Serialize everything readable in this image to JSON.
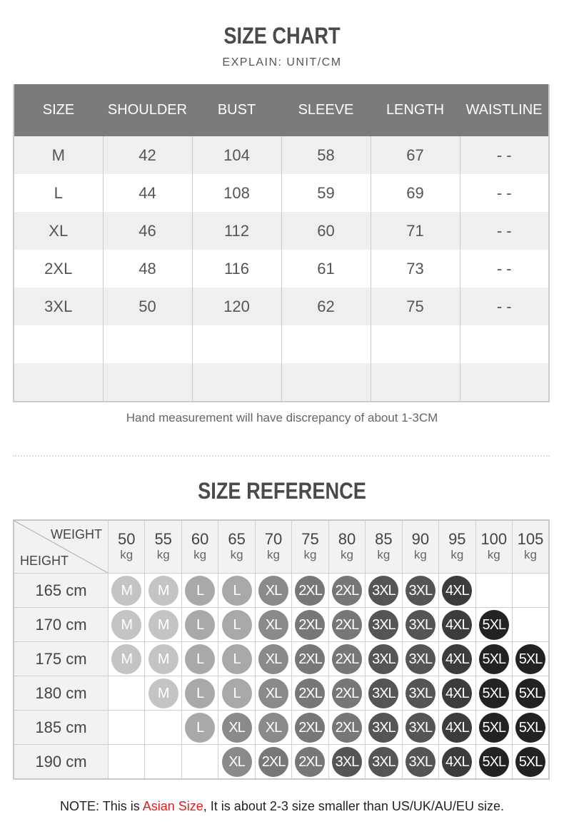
{
  "chart": {
    "title": "SIZE CHART",
    "explain": "EXPLAIN: UNIT/CM",
    "headers": [
      "SIZE",
      "SHOULDER",
      "BUST",
      "SLEEVE",
      "LENGTH",
      "WAISTLINE"
    ],
    "rows": [
      [
        "M",
        "42",
        "104",
        "58",
        "67",
        "- -"
      ],
      [
        "L",
        "44",
        "108",
        "59",
        "69",
        "- -"
      ],
      [
        "XL",
        "46",
        "112",
        "60",
        "71",
        "- -"
      ],
      [
        "2XL",
        "48",
        "116",
        "61",
        "73",
        "- -"
      ],
      [
        "3XL",
        "50",
        "120",
        "62",
        "75",
        "- -"
      ],
      [
        "",
        "",
        "",
        "",
        "",
        ""
      ],
      [
        "",
        "",
        "",
        "",
        "",
        ""
      ]
    ],
    "note": "Hand measurement will have discrepancy of about 1-3CM"
  },
  "reference": {
    "title": "SIZE REFERENCE",
    "weight_label": "WEIGHT",
    "height_label": "HEIGHT",
    "weights": [
      "50",
      "55",
      "60",
      "65",
      "70",
      "75",
      "80",
      "85",
      "90",
      "95",
      "100",
      "105"
    ],
    "weight_unit": "kg",
    "heights": [
      "165 cm",
      "170 cm",
      "175 cm",
      "180 cm",
      "185 cm",
      "190 cm"
    ],
    "grid": [
      [
        "M",
        "M",
        "L",
        "L",
        "XL",
        "2XL",
        "2XL",
        "3XL",
        "3XL",
        "4XL",
        "",
        ""
      ],
      [
        "M",
        "M",
        "L",
        "L",
        "XL",
        "2XL",
        "2XL",
        "3XL",
        "3XL",
        "4XL",
        "5XL",
        ""
      ],
      [
        "M",
        "M",
        "L",
        "L",
        "XL",
        "2XL",
        "2XL",
        "3XL",
        "3XL",
        "4XL",
        "5XL",
        "5XL"
      ],
      [
        "",
        "M",
        "L",
        "L",
        "XL",
        "2XL",
        "2XL",
        "3XL",
        "3XL",
        "4XL",
        "5XL",
        "5XL"
      ],
      [
        "",
        "",
        "L",
        "XL",
        "XL",
        "2XL",
        "2XL",
        "3XL",
        "3XL",
        "4XL",
        "5XL",
        "5XL"
      ],
      [
        "",
        "",
        "",
        "XL",
        "2XL",
        "2XL",
        "3XL",
        "3XL",
        "3XL",
        "4XL",
        "5XL",
        "5XL"
      ]
    ],
    "size_colors": {
      "M": "#c4c4c4",
      "L": "#a9a9a9",
      "XL": "#8a8a8a",
      "2XL": "#777777",
      "3XL": "#555555",
      "4XL": "#3c3c3c",
      "5XL": "#222222"
    }
  },
  "footer": {
    "prefix": "NOTE: This is ",
    "highlight": "Asian Size",
    "suffix": ", It is about 2-3 size smaller than US/UK/AU/EU size.",
    "highlight_color": "#e02020"
  }
}
